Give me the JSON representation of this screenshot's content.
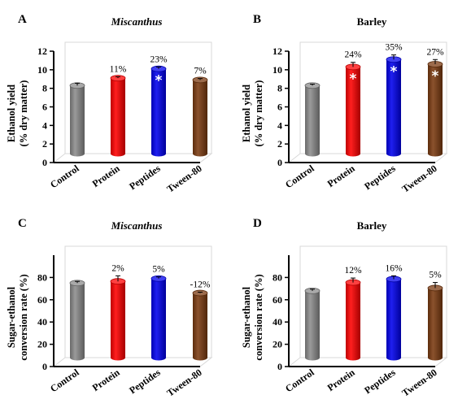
{
  "figure": {
    "panels": [
      {
        "label": "A",
        "title": "Miscanthus",
        "title_italic": true,
        "ylabel_lines": [
          "Ethanol yield",
          "(% dry matter)"
        ]
      },
      {
        "label": "B",
        "title": "Barley",
        "title_italic": false,
        "ylabel_lines": [
          "Ethanol yield",
          "(% dry matter)"
        ]
      },
      {
        "label": "C",
        "title": "Miscanthus",
        "title_italic": true,
        "ylabel_lines": [
          "Sugar-ethanol",
          "conversion rate (%)"
        ]
      },
      {
        "label": "D",
        "title": "Barley",
        "title_italic": false,
        "ylabel_lines": [
          "Sugar-ethanol",
          "conversion rate (%)"
        ]
      }
    ]
  },
  "chart_data": [
    {
      "type": "bar",
      "title": "Miscanthus",
      "ylabel": "Ethanol yield (% dry matter)",
      "categories": [
        "Control",
        "Protein",
        "Peptides",
        "Tween-80"
      ],
      "colors": [
        "#8c8c8c",
        "#ff0000",
        "#0000ee",
        "#7b3a10"
      ],
      "values": [
        8.3,
        9.1,
        10.1,
        8.9
      ],
      "errors": [
        0.25,
        0.15,
        0.2,
        0.15
      ],
      "annotations": [
        "",
        "11%",
        "23%",
        "7%"
      ],
      "significant": [
        false,
        false,
        true,
        false
      ],
      "ylim": [
        0,
        12
      ],
      "yticks": [
        0,
        2,
        4,
        6,
        8,
        10,
        12
      ]
    },
    {
      "type": "bar",
      "title": "Barley",
      "ylabel": "Ethanol yield (% dry matter)",
      "categories": [
        "Control",
        "Protein",
        "Peptides",
        "Tween-80"
      ],
      "colors": [
        "#8c8c8c",
        "#ff0000",
        "#0000ee",
        "#7b3a10"
      ],
      "values": [
        8.3,
        10.3,
        11.1,
        10.6
      ],
      "errors": [
        0.15,
        0.5,
        0.5,
        0.5
      ],
      "annotations": [
        "",
        "24%",
        "35%",
        "27%"
      ],
      "significant": [
        false,
        true,
        true,
        true
      ],
      "ylim": [
        0,
        12
      ],
      "yticks": [
        0,
        2,
        4,
        6,
        8,
        10,
        12
      ]
    },
    {
      "type": "bar",
      "title": "Miscanthus",
      "ylabel": "Sugar-ethanol conversion rate (%)",
      "categories": [
        "Control",
        "Protein",
        "Peptides",
        "Tween-80"
      ],
      "colors": [
        "#8c8c8c",
        "#ff0000",
        "#0000ee",
        "#7b3a10"
      ],
      "values": [
        75,
        76.5,
        79,
        66
      ],
      "errors": [
        1.5,
        5,
        1.5,
        0.8
      ],
      "annotations": [
        "",
        "2%",
        "5%",
        "-12%"
      ],
      "significant": [
        false,
        false,
        false,
        false
      ],
      "ylim": [
        0,
        100
      ],
      "yticks": [
        0,
        20,
        40,
        60,
        80
      ]
    },
    {
      "type": "bar",
      "title": "Barley",
      "ylabel": "Sugar-ethanol conversion rate (%)",
      "categories": [
        "Control",
        "Protein",
        "Peptides",
        "Tween-80"
      ],
      "colors": [
        "#8c8c8c",
        "#ff0000",
        "#0000ee",
        "#7b3a10"
      ],
      "values": [
        68,
        75.5,
        78.5,
        70.5
      ],
      "errors": [
        1.5,
        4,
        3,
        5
      ],
      "annotations": [
        "",
        "12%",
        "16%",
        "5%"
      ],
      "significant": [
        false,
        false,
        false,
        false
      ],
      "ylim": [
        0,
        100
      ],
      "yticks": [
        0,
        20,
        40,
        60,
        80
      ]
    }
  ]
}
